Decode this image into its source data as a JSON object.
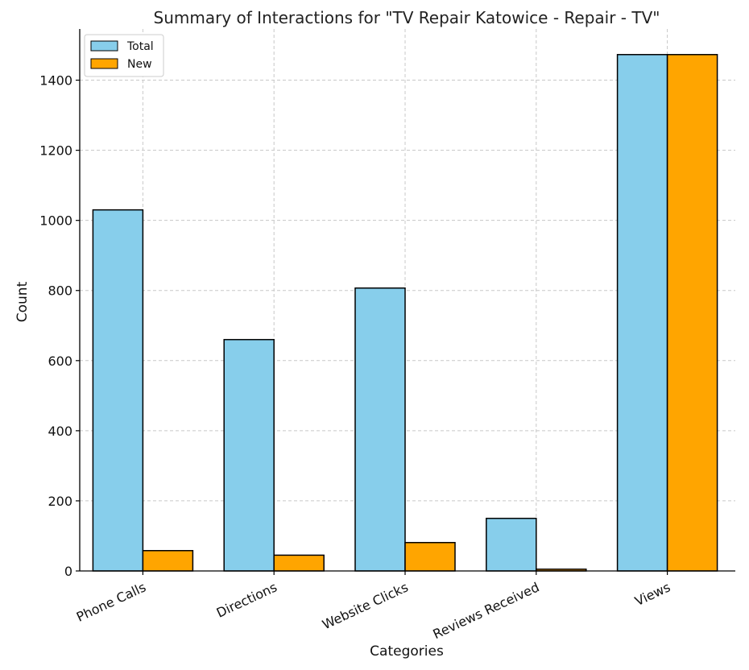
{
  "chart_data": {
    "type": "bar",
    "title": "Summary of Interactions for \"TV Repair Katowice - Repair - TV\"",
    "xlabel": "Categories",
    "ylabel": "Count",
    "categories": [
      "Phone Calls",
      "Directions",
      "Website Clicks",
      "Reviews Received",
      "Views"
    ],
    "series": [
      {
        "name": "Total",
        "color": "#87CEEB",
        "values": [
          1030,
          660,
          807,
          150,
          1473
        ]
      },
      {
        "name": "New",
        "color": "#FFA500",
        "values": [
          58,
          45,
          81,
          5,
          1473
        ]
      }
    ],
    "ylim": [
      0,
      1546
    ],
    "yticks": [
      0,
      200,
      400,
      600,
      800,
      1000,
      1200,
      1400
    ],
    "grid": true,
    "legend_position": "top-left"
  }
}
